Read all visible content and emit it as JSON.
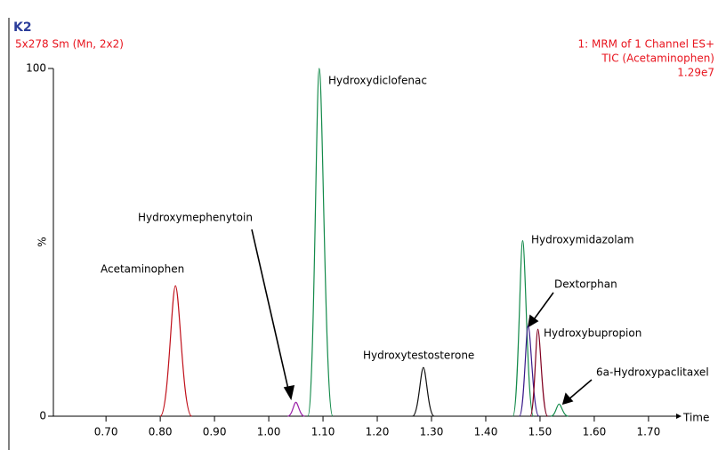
{
  "chart_data": {
    "type": "line",
    "title": "K2",
    "subtitle": "5x278 Sm (Mn, 2x2)",
    "annotations": [
      "1: MRM of 1 Channel ES+",
      "TIC (Acetaminophen)",
      "1.29e7"
    ],
    "x_label": "Time",
    "y_label": "%",
    "xlim": [
      0.603,
      1.751
    ],
    "ylim": [
      0,
      100
    ],
    "xticks": [
      {
        "value": 0.7,
        "label": "0.70"
      },
      {
        "value": 0.8,
        "label": "0.80"
      },
      {
        "value": 0.9,
        "label": "0.90"
      },
      {
        "value": 1.0,
        "label": "1.00"
      },
      {
        "value": 1.1,
        "label": "1.10"
      },
      {
        "value": 1.2,
        "label": "1.20"
      },
      {
        "value": 1.3,
        "label": "1.30"
      },
      {
        "value": 1.4,
        "label": "1.40"
      },
      {
        "value": 1.5,
        "label": "1.50"
      },
      {
        "value": 1.6,
        "label": "1.60"
      },
      {
        "value": 1.7,
        "label": "1.70"
      }
    ],
    "yticks": [
      0,
      100
    ],
    "series": [
      {
        "name": "Acetaminophen",
        "color": "#c0101a",
        "x": [
          0.8,
          0.828,
          0.858
        ],
        "values": [
          0,
          37.5,
          0
        ]
      },
      {
        "name": "Hydroxymephenytoin",
        "color": "#9a20a8",
        "x": [
          1.035,
          1.05,
          1.066
        ],
        "values": [
          0,
          4,
          0
        ]
      },
      {
        "name": "Hydroxydiclofenac",
        "color": "#138a4a",
        "x": [
          1.072,
          1.093,
          1.118
        ],
        "values": [
          0,
          100,
          0
        ]
      },
      {
        "name": "Hydroxytestosterone",
        "color": "#111111",
        "x": [
          1.265,
          1.285,
          1.305
        ],
        "values": [
          0,
          14,
          0
        ]
      },
      {
        "name": "Hydroxymidazolam",
        "color": "#138a4a",
        "x": [
          1.45,
          1.468,
          1.488
        ],
        "values": [
          0,
          50.5,
          0
        ]
      },
      {
        "name": "Dextorphan",
        "color": "#3a1a8a",
        "x": [
          1.462,
          1.478,
          1.498
        ],
        "values": [
          0,
          26,
          0
        ]
      },
      {
        "name": "Hydroxybupropion",
        "color": "#800020",
        "x": [
          1.482,
          1.496,
          1.514
        ],
        "values": [
          0,
          25,
          0
        ]
      },
      {
        "name": "6a-Hydroxypaclitaxel",
        "color": "#138a4a",
        "x": [
          1.52,
          1.535,
          1.552
        ],
        "values": [
          0,
          3.5,
          0
        ]
      }
    ]
  }
}
